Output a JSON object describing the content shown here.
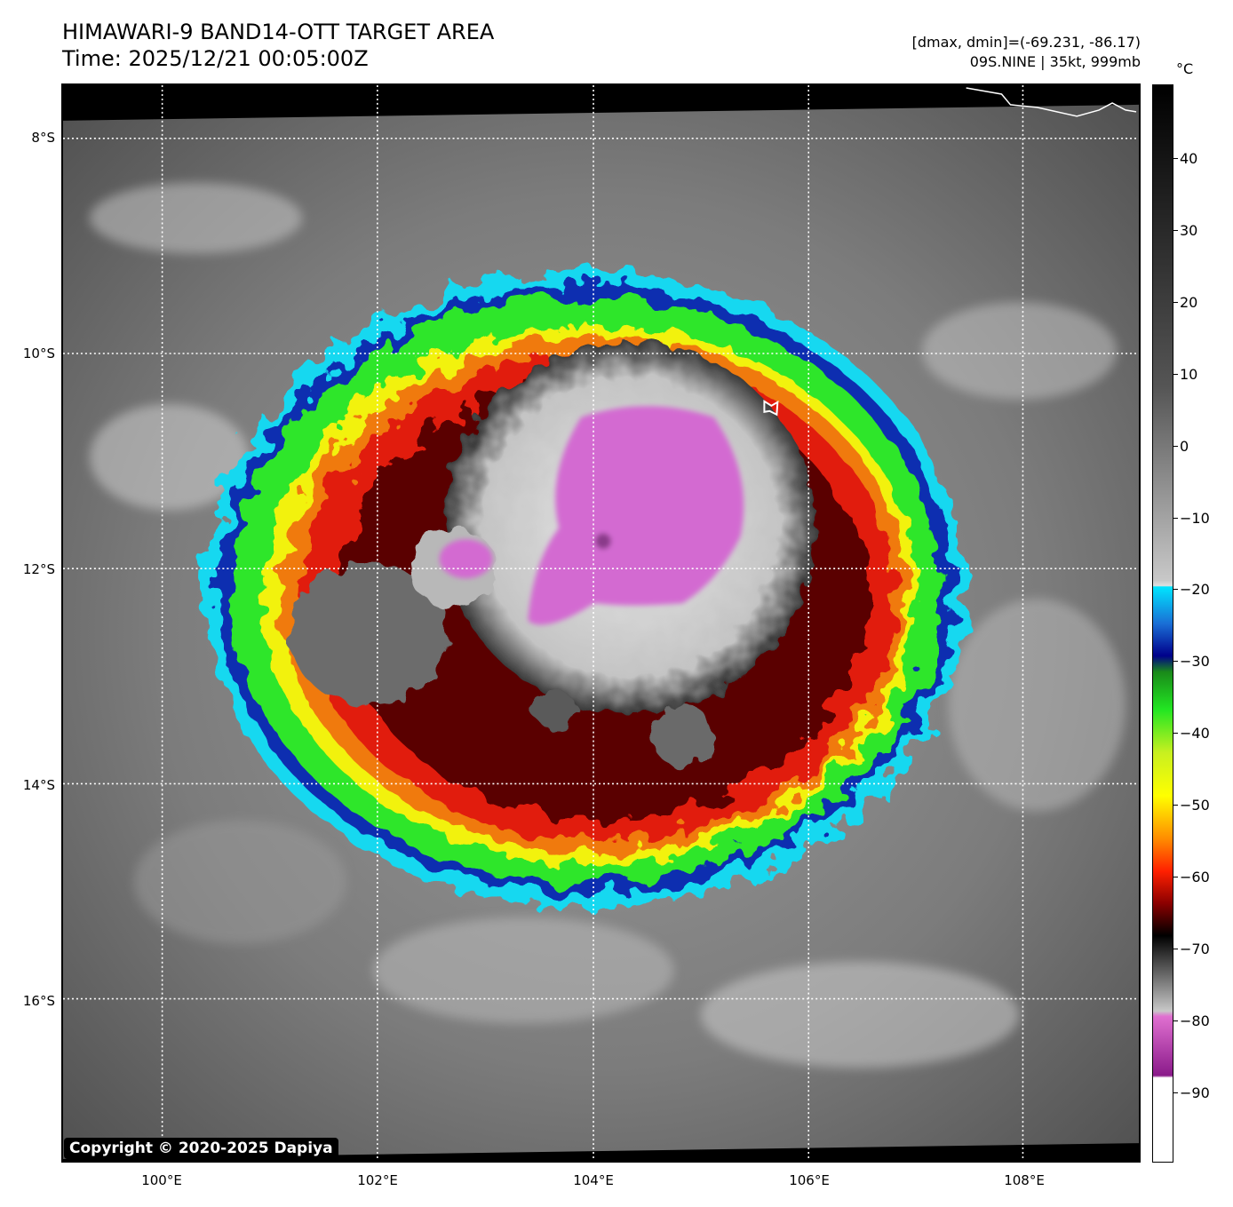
{
  "header": {
    "title_line1": "HIMAWARI-9 BAND14-OTT TARGET AREA",
    "title_line2": "Time: 2025/12/21 00:05:00Z",
    "info_line1": "[dmax, dmin]=(-69.231, -86.17)",
    "info_line2": "09S.NINE | 35kt, 999mb"
  },
  "map": {
    "lat_labels": [
      "8°S",
      "10°S",
      "12°S",
      "14°S",
      "16°S"
    ],
    "lon_labels": [
      "100°E",
      "102°E",
      "104°E",
      "106°E",
      "108°E"
    ],
    "copyright": "Copyright © 2020-2025 Dapiya"
  },
  "colorbar": {
    "unit": "°C",
    "ticks": [
      "40",
      "30",
      "20",
      "10",
      "0",
      "−10",
      "−20",
      "−30",
      "−40",
      "−50",
      "−60",
      "−70",
      "−80",
      "−90"
    ]
  },
  "colors": {
    "frame": "#000000",
    "grid": "#ffffff",
    "cold_core": "#d36bd1",
    "ring_red": "#e11a0c",
    "ring_green": "#2ee62a",
    "ring_yellow": "#f2f20f",
    "ring_blue": "#0f2fb0",
    "ring_cyan": "#19d8f0"
  }
}
